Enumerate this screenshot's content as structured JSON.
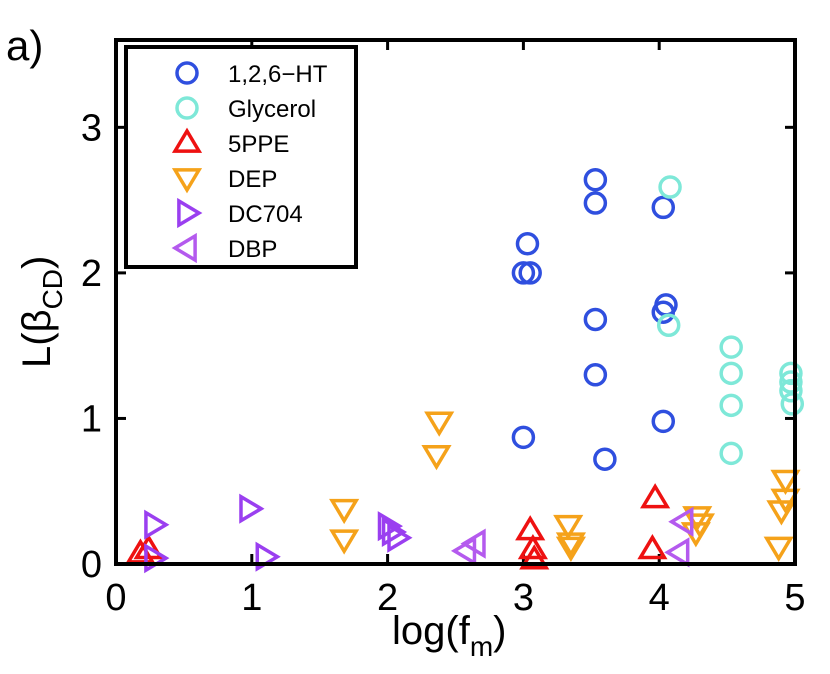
{
  "chart_data": {
    "type": "scatter",
    "panel_label": "a)",
    "xlabel": "log(f_m)",
    "xlabel_main": "log(f",
    "xlabel_sub": "m",
    "xlabel_close": ")",
    "ylabel": "L(β_CD)",
    "ylabel_main": "L(β",
    "ylabel_sub": "CD",
    "ylabel_close": ")",
    "xlim": [
      0,
      5
    ],
    "ylim": [
      0,
      3.6
    ],
    "xticks": [
      0,
      1,
      2,
      3,
      4,
      5
    ],
    "yticks": [
      0,
      1,
      2,
      3
    ],
    "grid": false,
    "legend_position": "top-left",
    "series": [
      {
        "name": "1,2,6−HT",
        "marker": "circle",
        "color": "#2f4fdf",
        "points": [
          [
            3.0,
            0.87
          ],
          [
            3.0,
            2.0
          ],
          [
            3.05,
            2.0
          ],
          [
            3.03,
            2.2
          ],
          [
            3.53,
            2.64
          ],
          [
            3.53,
            2.48
          ],
          [
            3.53,
            1.68
          ],
          [
            3.53,
            1.3
          ],
          [
            3.6,
            0.72
          ],
          [
            4.03,
            2.45
          ],
          [
            4.05,
            1.78
          ],
          [
            4.03,
            1.73
          ],
          [
            4.03,
            0.98
          ]
        ]
      },
      {
        "name": "Glycerol",
        "color": "#7ee8d8",
        "marker": "circle",
        "points": [
          [
            4.08,
            2.59
          ],
          [
            4.07,
            1.64
          ],
          [
            4.53,
            1.49
          ],
          [
            4.53,
            1.31
          ],
          [
            4.53,
            1.09
          ],
          [
            4.53,
            0.76
          ],
          [
            4.97,
            1.31
          ],
          [
            4.97,
            1.25
          ],
          [
            4.97,
            1.19
          ],
          [
            4.98,
            1.1
          ]
        ]
      },
      {
        "name": "5PPE",
        "color": "#ee1111",
        "marker": "triangle-up",
        "points": [
          [
            0.18,
            0.07
          ],
          [
            0.24,
            0.1
          ],
          [
            3.05,
            0.23
          ],
          [
            3.07,
            0.1
          ],
          [
            3.08,
            0.03
          ],
          [
            3.97,
            0.45
          ],
          [
            3.95,
            0.1
          ]
        ]
      },
      {
        "name": "DEP",
        "color": "#f5a21a",
        "marker": "triangle-down",
        "points": [
          [
            1.68,
            0.38
          ],
          [
            1.68,
            0.17
          ],
          [
            2.38,
            0.98
          ],
          [
            2.36,
            0.75
          ],
          [
            3.33,
            0.27
          ],
          [
            3.35,
            0.15
          ],
          [
            3.35,
            0.12
          ],
          [
            4.28,
            0.33
          ],
          [
            4.3,
            0.28
          ],
          [
            4.27,
            0.22
          ],
          [
            4.93,
            0.58
          ],
          [
            4.93,
            0.45
          ],
          [
            4.9,
            0.37
          ],
          [
            4.88,
            0.12
          ]
        ]
      },
      {
        "name": "DC704",
        "color": "#9a3ff0",
        "marker": "triangle-right",
        "points": [
          [
            0.28,
            0.27
          ],
          [
            0.28,
            0.04
          ],
          [
            0.98,
            0.38
          ],
          [
            1.1,
            0.05
          ],
          [
            2.0,
            0.26
          ],
          [
            2.03,
            0.22
          ],
          [
            2.07,
            0.18
          ]
        ]
      },
      {
        "name": "DBP",
        "color": "#b45aee",
        "marker": "triangle-left",
        "points": [
          [
            2.58,
            0.09
          ],
          [
            2.65,
            0.14
          ],
          [
            4.18,
            0.29
          ],
          [
            4.15,
            0.08
          ]
        ]
      }
    ]
  }
}
